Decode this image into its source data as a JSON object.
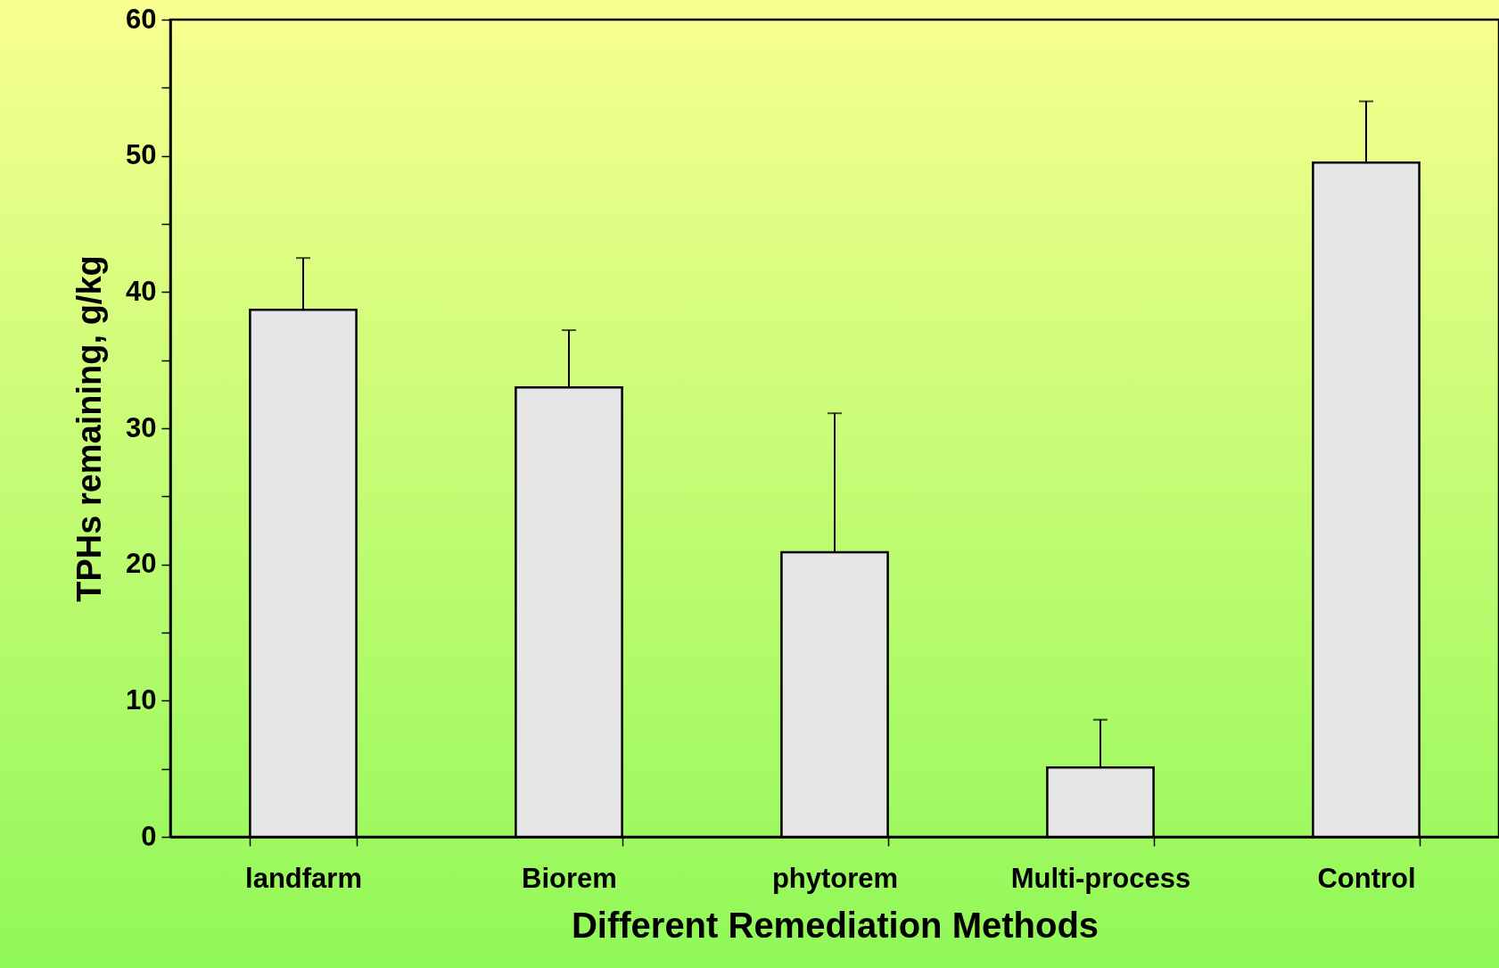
{
  "chart_data": {
    "type": "bar",
    "xlabel": "Different Remediation Methods",
    "ylabel": "TPHs remaining, g/kg",
    "categories": [
      "landfarm",
      "Biorem",
      "phytorem",
      "Multi-process",
      "Control"
    ],
    "values": [
      38.7,
      33.0,
      20.9,
      5.1,
      49.5
    ],
    "errors": [
      [
        38.7,
        42.5
      ],
      [
        33.0,
        37.2
      ],
      [
        20.9,
        31.1
      ],
      [
        5.1,
        8.6
      ],
      [
        49.5,
        54.0
      ]
    ],
    "color": "#e6e6e6",
    "ylim": [
      0,
      60
    ],
    "yticks": [
      0,
      {
        "value": 5,
        "label": null
      },
      10,
      {
        "value": 15,
        "label": null
      },
      20,
      {
        "value": 25,
        "label": null
      },
      30,
      {
        "value": 35,
        "label": null
      },
      40,
      {
        "value": 45,
        "label": null
      },
      50,
      {
        "value": 55,
        "label": null
      },
      60
    ],
    "grid": false
  }
}
